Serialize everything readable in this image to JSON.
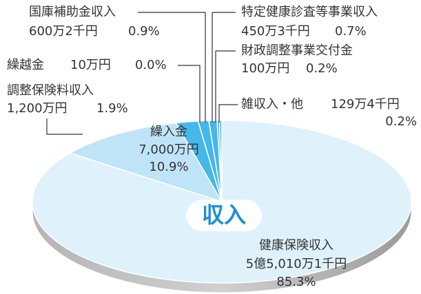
{
  "chart_data": {
    "type": "pie",
    "center_label": "収入",
    "categories": [
      "健康保険収入",
      "繰入金",
      "調整保険料収入",
      "繰越金",
      "国庫補助金収入",
      "特定健康診査等事業収入",
      "財政調整事業交付金",
      "雑収入・他"
    ],
    "amounts": [
      "5億5,010万1千円",
      "7,000万円",
      "1,200万円",
      "10万円",
      "600万2千円",
      "450万3千円",
      "100万円",
      "129万4千円"
    ],
    "values": [
      85.3,
      10.9,
      1.9,
      0.0,
      0.9,
      0.7,
      0.2,
      0.2
    ],
    "value_labels": [
      "85.3%",
      "10.9%",
      "1.9%",
      "0.0%",
      "0.9%",
      "0.7%",
      "0.2%",
      "0.2%"
    ],
    "colors": [
      "#dff1fb",
      "#bfe4f8",
      "#45b8ea",
      "#45b8ea",
      "#45b8ea",
      "#45b8ea",
      "#45b8ea",
      "#45b8ea"
    ]
  }
}
